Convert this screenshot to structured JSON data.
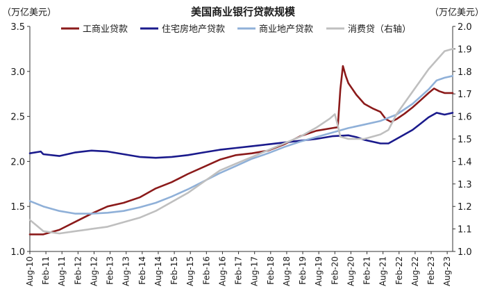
{
  "chart_data": {
    "type": "line",
    "title": "美国商业银行贷款规模",
    "y_left_label": "（万亿美元）",
    "y_right_label": "（万亿美元）",
    "y_left_range": [
      1.0,
      3.5
    ],
    "y_right_range": [
      1.0,
      2.0
    ],
    "y_left_ticks": [
      "1.0",
      "1.5",
      "2.0",
      "2.5",
      "3.0",
      "3.5"
    ],
    "y_right_ticks": [
      "1.0",
      "1.1",
      "1.2",
      "1.3",
      "1.4",
      "1.5",
      "1.6",
      "1.7",
      "1.8",
      "1.9",
      "2.0"
    ],
    "x_tick_labels": [
      "Aug-10",
      "Feb-11",
      "Aug-11",
      "Feb-12",
      "Aug-12",
      "Feb-13",
      "Aug-13",
      "Feb-14",
      "Aug-14",
      "Feb-15",
      "Aug-15",
      "Feb-16",
      "Aug-16",
      "Feb-17",
      "Aug-17",
      "Feb-18",
      "Aug-18",
      "Feb-19",
      "Aug-19",
      "Feb-20",
      "Aug-20",
      "Feb-21",
      "Aug-21",
      "Feb-22",
      "Aug-22",
      "Feb-23",
      "Aug-23"
    ],
    "x_range": [
      2010.58,
      2023.75
    ],
    "legend": [
      "工商业贷款",
      "住宅房地产贷款",
      "商业地产贷款",
      "消费贷（右轴）"
    ],
    "legend_position": "top",
    "series": [
      {
        "name": "工商业贷款",
        "axis": "left",
        "color": "#8b1a1a",
        "points": [
          [
            2010.58,
            1.19
          ],
          [
            2011.0,
            1.19
          ],
          [
            2011.5,
            1.24
          ],
          [
            2012.0,
            1.33
          ],
          [
            2012.5,
            1.42
          ],
          [
            2013.0,
            1.5
          ],
          [
            2013.5,
            1.54
          ],
          [
            2014.0,
            1.6
          ],
          [
            2014.5,
            1.7
          ],
          [
            2015.0,
            1.77
          ],
          [
            2015.5,
            1.86
          ],
          [
            2016.0,
            1.94
          ],
          [
            2016.5,
            2.02
          ],
          [
            2017.0,
            2.07
          ],
          [
            2017.5,
            2.09
          ],
          [
            2018.0,
            2.12
          ],
          [
            2018.5,
            2.19
          ],
          [
            2019.0,
            2.28
          ],
          [
            2019.5,
            2.34
          ],
          [
            2020.0,
            2.37
          ],
          [
            2020.17,
            2.38
          ],
          [
            2020.25,
            2.8
          ],
          [
            2020.33,
            3.06
          ],
          [
            2020.42,
            2.95
          ],
          [
            2020.5,
            2.87
          ],
          [
            2020.75,
            2.74
          ],
          [
            2021.0,
            2.64
          ],
          [
            2021.25,
            2.59
          ],
          [
            2021.5,
            2.55
          ],
          [
            2021.67,
            2.47
          ],
          [
            2021.83,
            2.44
          ],
          [
            2022.0,
            2.47
          ],
          [
            2022.25,
            2.53
          ],
          [
            2022.5,
            2.6
          ],
          [
            2022.75,
            2.68
          ],
          [
            2023.0,
            2.76
          ],
          [
            2023.17,
            2.81
          ],
          [
            2023.33,
            2.78
          ],
          [
            2023.5,
            2.76
          ],
          [
            2023.75,
            2.76
          ]
        ]
      },
      {
        "name": "住宅房地产贷款",
        "axis": "left",
        "color": "#1a1a8c",
        "points": [
          [
            2010.58,
            2.09
          ],
          [
            2010.92,
            2.11
          ],
          [
            2011.0,
            2.08
          ],
          [
            2011.5,
            2.06
          ],
          [
            2012.0,
            2.1
          ],
          [
            2012.5,
            2.12
          ],
          [
            2013.0,
            2.11
          ],
          [
            2013.5,
            2.08
          ],
          [
            2014.0,
            2.05
          ],
          [
            2014.5,
            2.04
          ],
          [
            2015.0,
            2.05
          ],
          [
            2015.5,
            2.07
          ],
          [
            2016.0,
            2.1
          ],
          [
            2016.5,
            2.13
          ],
          [
            2017.0,
            2.15
          ],
          [
            2017.5,
            2.17
          ],
          [
            2018.0,
            2.19
          ],
          [
            2018.5,
            2.21
          ],
          [
            2019.0,
            2.23
          ],
          [
            2019.5,
            2.25
          ],
          [
            2020.0,
            2.28
          ],
          [
            2020.5,
            2.29
          ],
          [
            2020.75,
            2.27
          ],
          [
            2021.0,
            2.24
          ],
          [
            2021.5,
            2.2
          ],
          [
            2021.75,
            2.2
          ],
          [
            2022.0,
            2.25
          ],
          [
            2022.5,
            2.35
          ],
          [
            2022.75,
            2.42
          ],
          [
            2023.0,
            2.49
          ],
          [
            2023.25,
            2.54
          ],
          [
            2023.5,
            2.52
          ],
          [
            2023.75,
            2.54
          ]
        ]
      },
      {
        "name": "商业地产贷款",
        "axis": "left",
        "color": "#8fb0d8",
        "points": [
          [
            2010.58,
            1.56
          ],
          [
            2011.0,
            1.5
          ],
          [
            2011.5,
            1.45
          ],
          [
            2012.0,
            1.42
          ],
          [
            2012.5,
            1.42
          ],
          [
            2013.0,
            1.43
          ],
          [
            2013.5,
            1.45
          ],
          [
            2014.0,
            1.49
          ],
          [
            2014.5,
            1.54
          ],
          [
            2015.0,
            1.61
          ],
          [
            2015.5,
            1.69
          ],
          [
            2016.0,
            1.78
          ],
          [
            2016.5,
            1.87
          ],
          [
            2017.0,
            1.95
          ],
          [
            2017.5,
            2.03
          ],
          [
            2018.0,
            2.09
          ],
          [
            2018.5,
            2.16
          ],
          [
            2019.0,
            2.22
          ],
          [
            2019.5,
            2.27
          ],
          [
            2020.0,
            2.32
          ],
          [
            2020.5,
            2.37
          ],
          [
            2021.0,
            2.41
          ],
          [
            2021.5,
            2.45
          ],
          [
            2022.0,
            2.52
          ],
          [
            2022.5,
            2.64
          ],
          [
            2022.75,
            2.72
          ],
          [
            2023.0,
            2.8
          ],
          [
            2023.25,
            2.9
          ],
          [
            2023.5,
            2.93
          ],
          [
            2023.75,
            2.95
          ]
        ]
      },
      {
        "name": "消费贷（右轴）",
        "axis": "right",
        "color": "#bfbfbf",
        "points": [
          [
            2010.58,
            1.14
          ],
          [
            2010.75,
            1.12
          ],
          [
            2011.0,
            1.09
          ],
          [
            2011.5,
            1.08
          ],
          [
            2012.0,
            1.09
          ],
          [
            2012.5,
            1.1
          ],
          [
            2013.0,
            1.11
          ],
          [
            2013.5,
            1.13
          ],
          [
            2014.0,
            1.15
          ],
          [
            2014.5,
            1.18
          ],
          [
            2015.0,
            1.22
          ],
          [
            2015.5,
            1.26
          ],
          [
            2016.0,
            1.31
          ],
          [
            2016.5,
            1.36
          ],
          [
            2017.0,
            1.39
          ],
          [
            2017.5,
            1.42
          ],
          [
            2018.0,
            1.45
          ],
          [
            2018.5,
            1.48
          ],
          [
            2019.0,
            1.51
          ],
          [
            2019.5,
            1.55
          ],
          [
            2019.92,
            1.59
          ],
          [
            2020.08,
            1.61
          ],
          [
            2020.17,
            1.56
          ],
          [
            2020.25,
            1.51
          ],
          [
            2020.5,
            1.5
          ],
          [
            2021.0,
            1.5
          ],
          [
            2021.5,
            1.52
          ],
          [
            2021.75,
            1.54
          ],
          [
            2022.0,
            1.61
          ],
          [
            2022.5,
            1.71
          ],
          [
            2023.0,
            1.81
          ],
          [
            2023.5,
            1.89
          ],
          [
            2023.75,
            1.9
          ]
        ]
      }
    ]
  }
}
